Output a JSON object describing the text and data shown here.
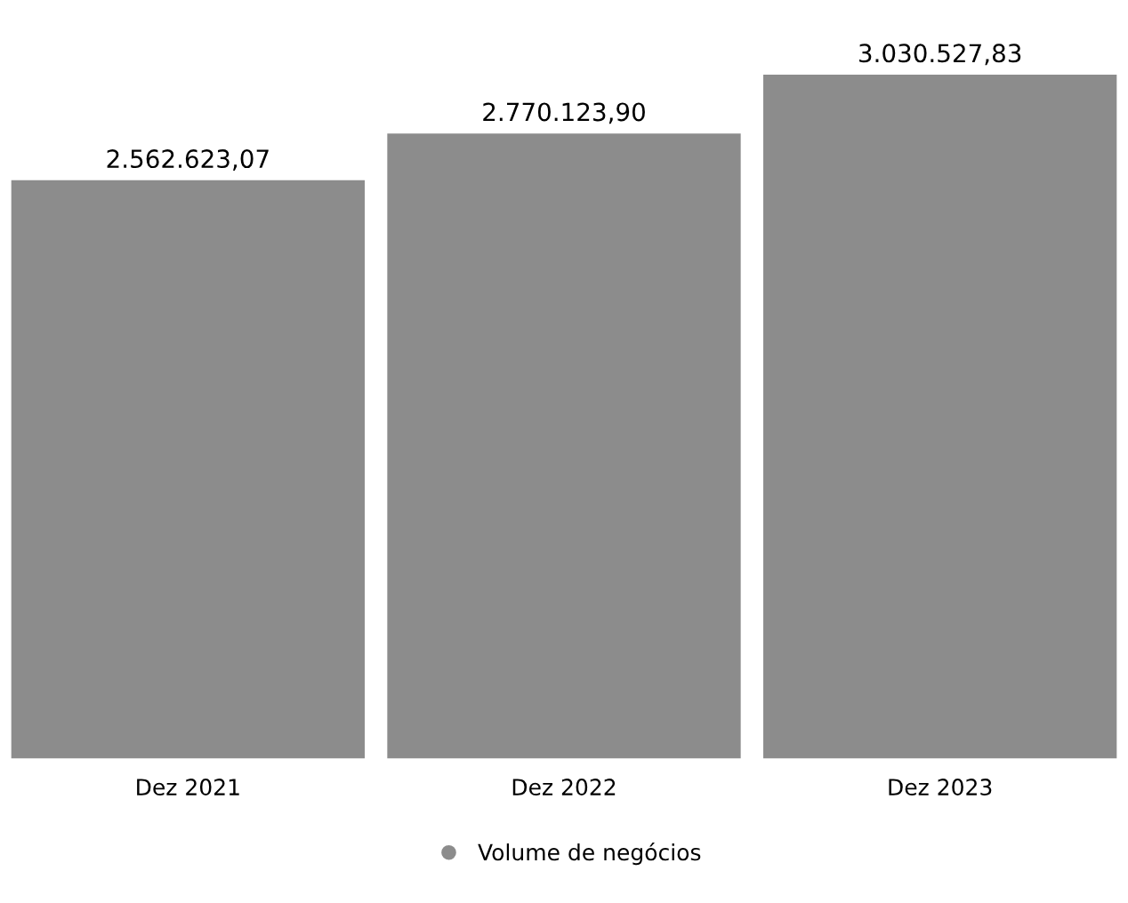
{
  "chart_data": {
    "type": "bar",
    "categories": [
      "Dez 2021",
      "Dez 2022",
      "Dez 2023"
    ],
    "series": [
      {
        "name": "Volume de negócios",
        "color": "#8c8c8c",
        "values": [
          2562623.07,
          2770123.9,
          3030527.83
        ],
        "value_labels": [
          "2.562.623,07",
          "2.770.123,90",
          "3.030.527,83"
        ]
      }
    ],
    "grid": false,
    "legend": "bottom",
    "tick_labels": "x"
  }
}
